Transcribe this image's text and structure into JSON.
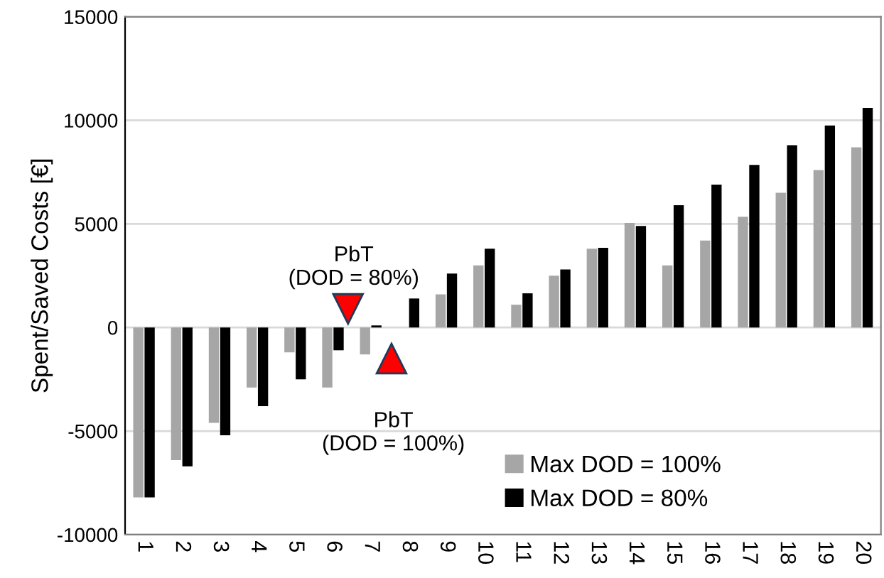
{
  "chart_data": {
    "type": "bar",
    "ylabel": "Spent/Saved Costs [€]",
    "categories": [
      "1",
      "2",
      "3",
      "4",
      "5",
      "6",
      "7",
      "8",
      "9",
      "10",
      "11",
      "12",
      "13",
      "14",
      "15",
      "16",
      "17",
      "18",
      "19",
      "20"
    ],
    "series": [
      {
        "name": "Max DOD = 100%",
        "color": "#a6a6a6",
        "values": [
          -8200,
          -6400,
          -4600,
          -2900,
          -1200,
          -2900,
          -1300,
          null,
          1600,
          3000,
          1100,
          2500,
          3800,
          5050,
          3000,
          4200,
          5350,
          6500,
          7600,
          8700
        ]
      },
      {
        "name": "Max DOD = 80%",
        "color": "#000000",
        "values": [
          -8200,
          -6700,
          -5200,
          -3800,
          -2500,
          -1100,
          100,
          1400,
          2600,
          3800,
          1650,
          2800,
          3850,
          4900,
          5900,
          6900,
          7850,
          8800,
          9750,
          10600
        ]
      }
    ],
    "annotations": [
      "PbT\n(DOD = 80%)",
      "PbT\n(DOD = 100%)"
    ],
    "ylim": [
      -10000,
      15000
    ],
    "yticks": [
      -10000,
      -5000,
      0,
      5000,
      10000,
      15000
    ],
    "grid": "y",
    "legend": "bottom right"
  }
}
